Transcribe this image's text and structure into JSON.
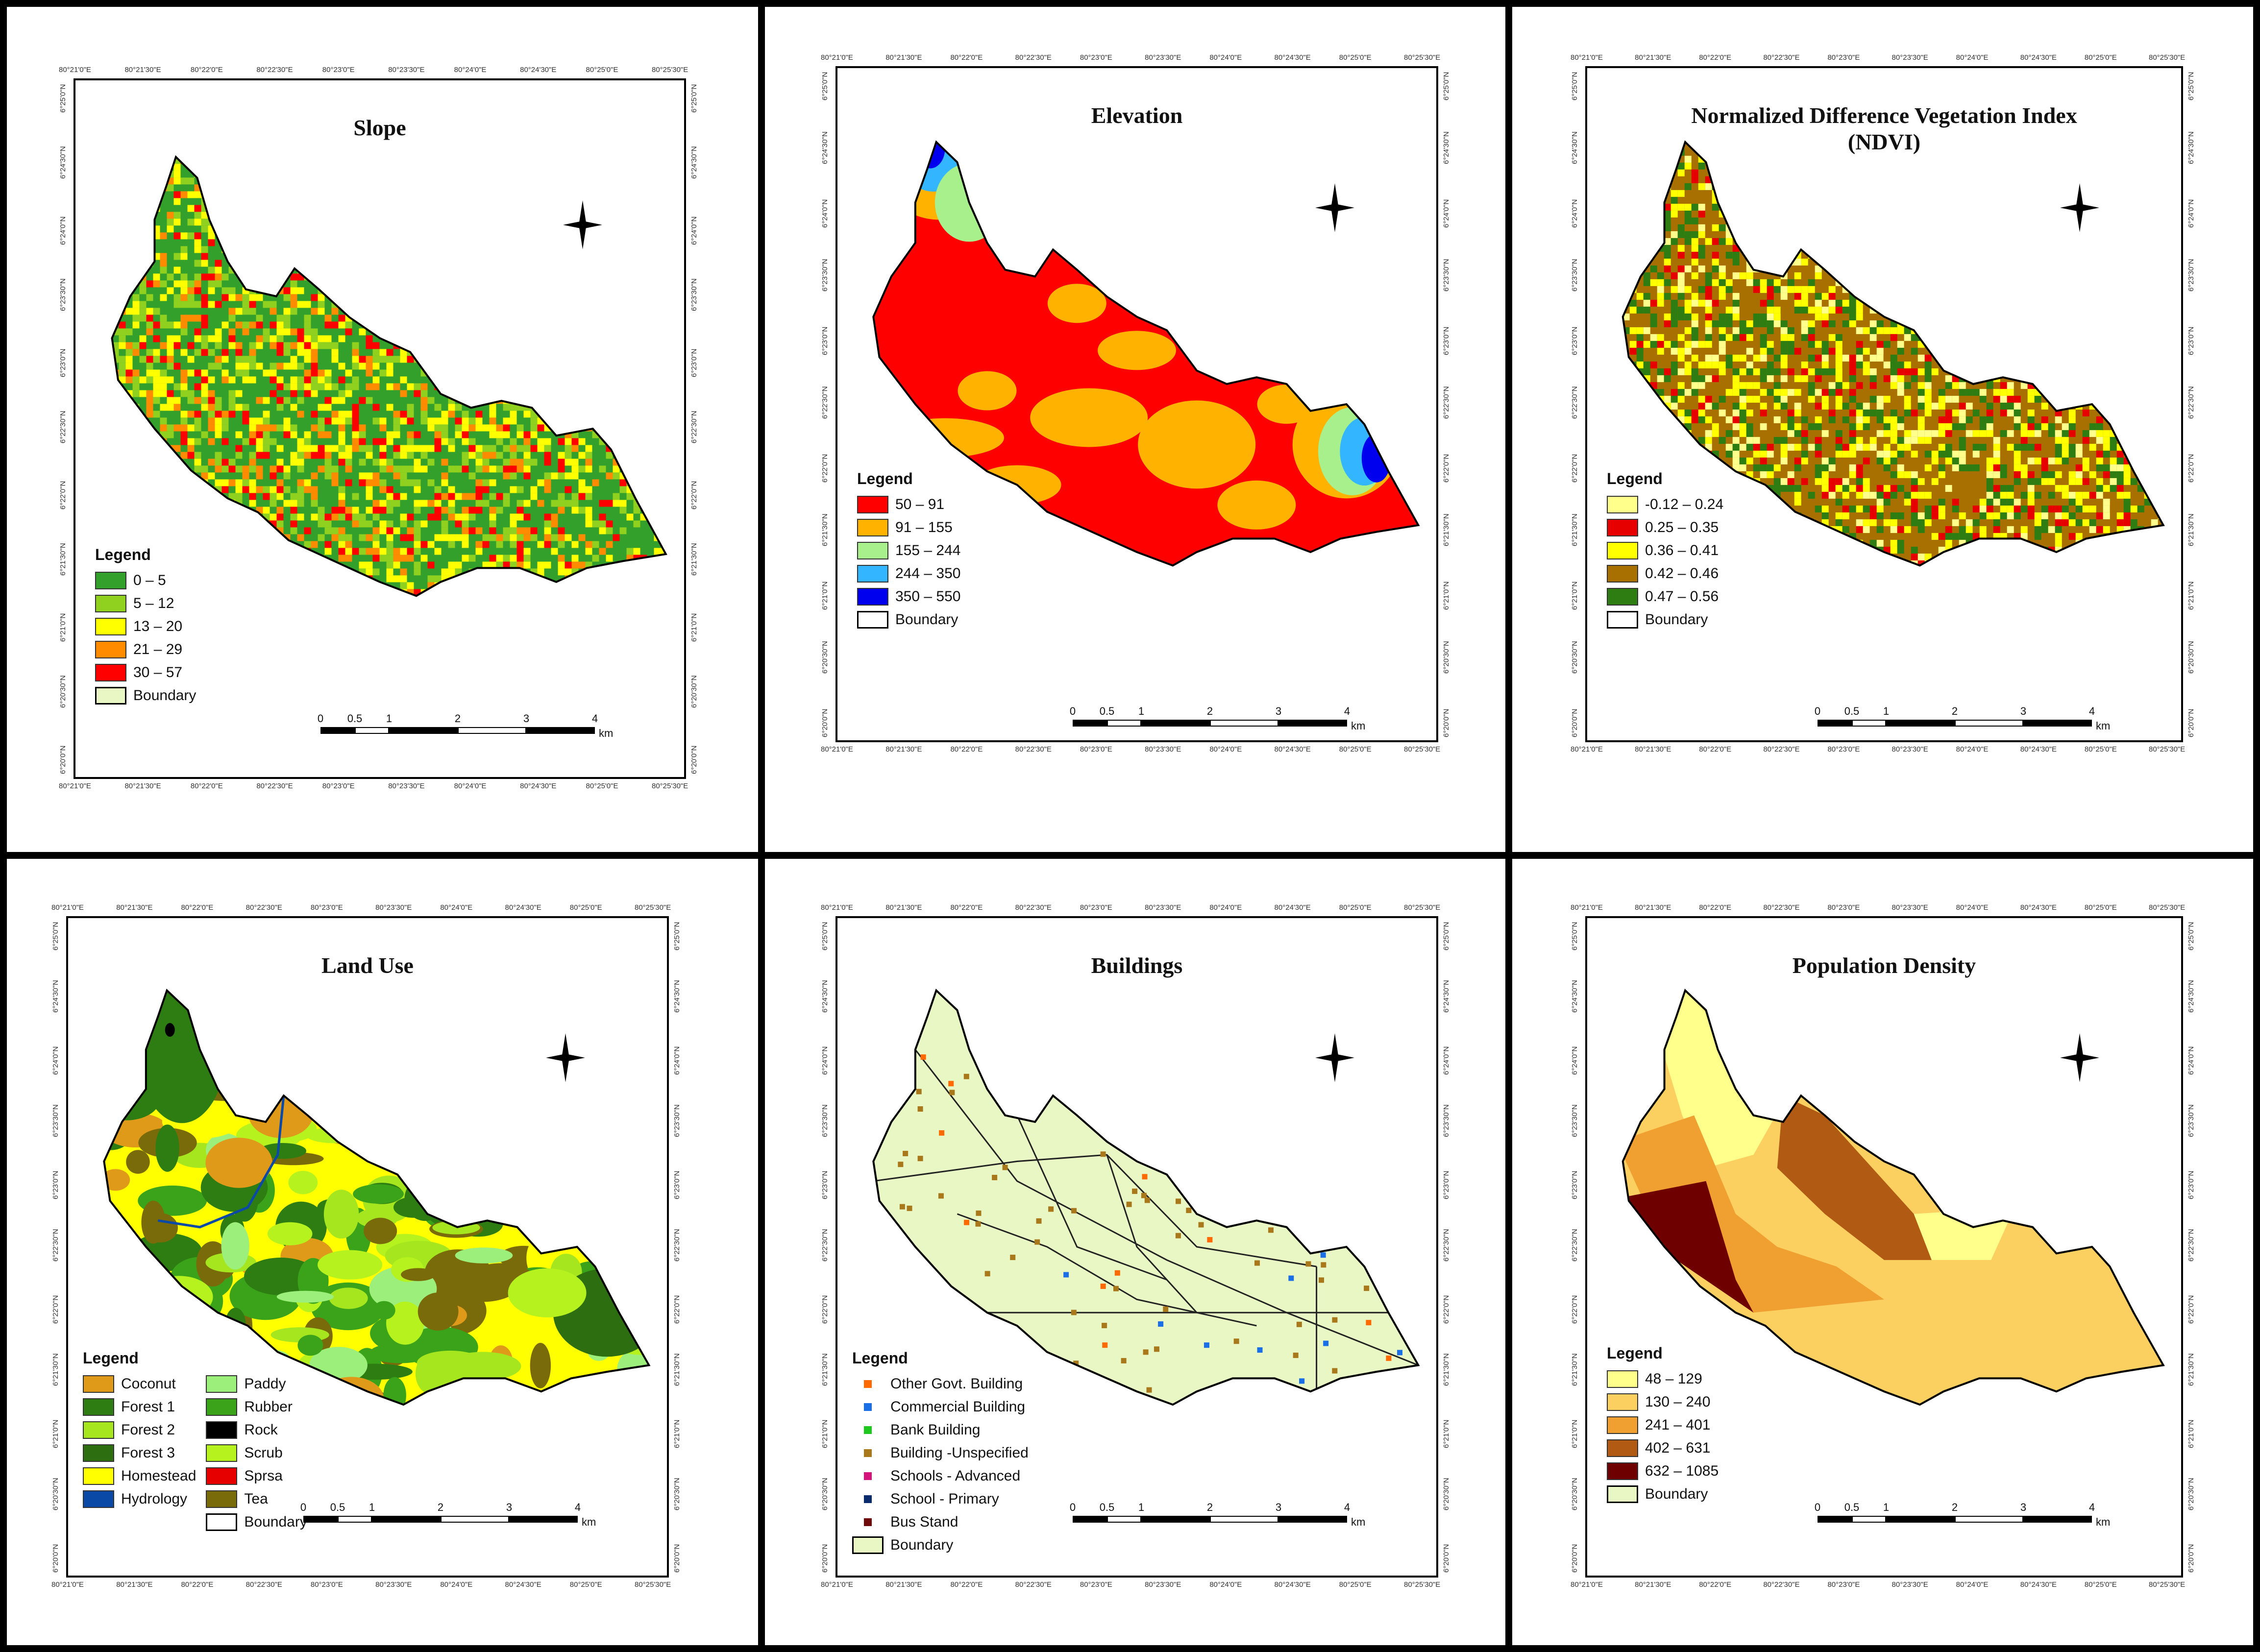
{
  "figure": {
    "panels": [
      {
        "id": "slope",
        "title": "Slope",
        "legend_title": "Legend",
        "legend": [
          {
            "label": "0 – 5",
            "color": "#33a02c"
          },
          {
            "label": "5 – 12",
            "color": "#8fd11e"
          },
          {
            "label": "13 – 20",
            "color": "#ffff00"
          },
          {
            "label": "21 – 29",
            "color": "#ff8c00"
          },
          {
            "label": "30 – 57",
            "color": "#ff0000"
          },
          {
            "label": "Boundary",
            "color": "#e8f7c4"
          }
        ],
        "scale_labels": [
          "0",
          "0.5",
          "1",
          "2",
          "3",
          "4"
        ],
        "scale_unit": "km",
        "top_ticks": [
          "80°21'0\"E",
          "80°21'30\"E",
          "80°22'0\"E",
          "80°22'30\"E",
          "80°23'0\"E",
          "80°23'30\"E",
          "80°24'0\"E",
          "80°24'30\"E",
          "80°25'0\"E",
          "80°25'30\"E"
        ],
        "side_ticks": [
          "6°25'0\"N",
          "6°24'30\"N",
          "6°24'0\"N",
          "6°23'30\"N",
          "6°23'0\"N",
          "6°22'30\"N",
          "6°22'0\"N",
          "6°21'30\"N",
          "6°21'0\"N",
          "6°20'30\"N",
          "6°20'0\"N"
        ]
      },
      {
        "id": "elevation",
        "title": "Elevation",
        "legend_title": "Legend",
        "legend": [
          {
            "label": "50 – 91",
            "color": "#ff0000"
          },
          {
            "label": "91 – 155",
            "color": "#ffb300"
          },
          {
            "label": "155 – 244",
            "color": "#a8f08c"
          },
          {
            "label": "244 – 350",
            "color": "#33b5ff"
          },
          {
            "label": "350 – 550",
            "color": "#0000ee"
          },
          {
            "label": "Boundary",
            "color": "#ffffff"
          }
        ],
        "scale_labels": [
          "0",
          "0.5",
          "1",
          "2",
          "3",
          "4"
        ],
        "scale_unit": "km",
        "top_ticks": [
          "80°21'0\"E",
          "80°21'30\"E",
          "80°22'0\"E",
          "80°22'30\"E",
          "80°23'0\"E",
          "80°23'30\"E",
          "80°24'0\"E",
          "80°24'30\"E",
          "80°25'0\"E",
          "80°25'30\"E"
        ],
        "side_ticks": [
          "6°25'0\"N",
          "6°24'30\"N",
          "6°24'0\"N",
          "6°23'30\"N",
          "6°23'0\"N",
          "6°22'30\"N",
          "6°22'0\"N",
          "6°21'30\"N",
          "6°21'0\"N",
          "6°20'30\"N",
          "6°20'0\"N"
        ]
      },
      {
        "id": "ndvi",
        "title": "Normalized Difference Vegetation Index",
        "subtitle": "(NDVI)",
        "legend_title": "Legend",
        "legend": [
          {
            "label": "-0.12 – 0.24",
            "color": "#ffff8c"
          },
          {
            "label": "0.25 – 0.35",
            "color": "#e60000"
          },
          {
            "label": "0.36 – 0.41",
            "color": "#ffff00"
          },
          {
            "label": "0.42 – 0.46",
            "color": "#a87000"
          },
          {
            "label": "0.47 – 0.56",
            "color": "#2e7d12"
          },
          {
            "label": "Boundary",
            "color": "#ffffff"
          }
        ],
        "scale_labels": [
          "0",
          "0.5",
          "1",
          "2",
          "3",
          "4"
        ],
        "scale_unit": "km",
        "top_ticks": [
          "80°21'0\"E",
          "80°21'30\"E",
          "80°22'0\"E",
          "80°22'30\"E",
          "80°23'0\"E",
          "80°23'30\"E",
          "80°24'0\"E",
          "80°24'30\"E",
          "80°25'0\"E",
          "80°25'30\"E"
        ],
        "side_ticks": [
          "6°25'0\"N",
          "6°24'30\"N",
          "6°24'0\"N",
          "6°23'30\"N",
          "6°23'0\"N",
          "6°22'30\"N",
          "6°22'0\"N",
          "6°21'30\"N",
          "6°21'0\"N",
          "6°20'30\"N",
          "6°20'0\"N"
        ]
      },
      {
        "id": "landuse",
        "title": "Land Use",
        "legend_title": "Legend",
        "legend_col1": [
          {
            "label": "Coconut",
            "color": "#e09a1a"
          },
          {
            "label": "Forest 1",
            "color": "#2e7d12"
          },
          {
            "label": "Forest 2",
            "color": "#a6e61e"
          },
          {
            "label": "Forest 3",
            "color": "#2d6e10"
          },
          {
            "label": "Homestead",
            "color": "#ffff00"
          },
          {
            "label": "Hydrology",
            "color": "#0a4aa6"
          }
        ],
        "legend_col2": [
          {
            "label": "Paddy",
            "color": "#9bef7a"
          },
          {
            "label": "Rubber",
            "color": "#3aa31a"
          },
          {
            "label": "Rock",
            "color": "#000000"
          },
          {
            "label": "Scrub",
            "color": "#b5f21e"
          },
          {
            "label": "Sprsa",
            "color": "#e60000"
          },
          {
            "label": "Tea",
            "color": "#7a6b0a"
          },
          {
            "label": "Boundary",
            "color": "#ffffff"
          }
        ],
        "scale_labels": [
          "0",
          "0.5",
          "1",
          "2",
          "3",
          "4"
        ],
        "scale_unit": "km",
        "top_ticks": [
          "80°21'0\"E",
          "80°21'30\"E",
          "80°22'0\"E",
          "80°22'30\"E",
          "80°23'0\"E",
          "80°23'30\"E",
          "80°24'0\"E",
          "80°24'30\"E",
          "80°25'0\"E",
          "80°25'30\"E"
        ],
        "side_ticks": [
          "6°25'0\"N",
          "6°24'30\"N",
          "6°24'0\"N",
          "6°23'30\"N",
          "6°23'0\"N",
          "6°22'30\"N",
          "6°22'0\"N",
          "6°21'30\"N",
          "6°21'0\"N",
          "6°20'30\"N",
          "6°20'0\"N"
        ]
      },
      {
        "id": "buildings",
        "title": "Buildings",
        "legend_title": "Legend",
        "legend": [
          {
            "label": "Other Govt. Building",
            "color": "#ff6a00"
          },
          {
            "label": "Commercial Building",
            "color": "#1a6ee6"
          },
          {
            "label": "Bank Building",
            "color": "#1ec81e"
          },
          {
            "label": "Building -Unspecified",
            "color": "#a8781a"
          },
          {
            "label": "Schools - Advanced",
            "color": "#d4147a"
          },
          {
            "label": "School - Primary",
            "color": "#0a2a6e"
          },
          {
            "label": "Bus Stand",
            "color": "#6e0a0a"
          },
          {
            "label": "Boundary",
            "color": "#e8f7c4"
          }
        ],
        "scale_labels": [
          "0",
          "0.5",
          "1",
          "2",
          "3",
          "4"
        ],
        "scale_unit": "km",
        "top_ticks": [
          "80°21'0\"E",
          "80°21'30\"E",
          "80°22'0\"E",
          "80°22'30\"E",
          "80°23'0\"E",
          "80°23'30\"E",
          "80°24'0\"E",
          "80°24'30\"E",
          "80°25'0\"E",
          "80°25'30\"E"
        ],
        "side_ticks": [
          "6°25'0\"N",
          "6°24'30\"N",
          "6°24'0\"N",
          "6°23'30\"N",
          "6°23'0\"N",
          "6°22'30\"N",
          "6°22'0\"N",
          "6°21'30\"N",
          "6°21'0\"N",
          "6°20'30\"N",
          "6°20'0\"N"
        ]
      },
      {
        "id": "population",
        "title": "Population Density",
        "legend_title": "Legend",
        "legend": [
          {
            "label": "48 – 129",
            "color": "#ffff8c"
          },
          {
            "label": "130 – 240",
            "color": "#fcd060"
          },
          {
            "label": "241 – 401",
            "color": "#f0a030"
          },
          {
            "label": "402 – 631",
            "color": "#b05a14"
          },
          {
            "label": "632 – 1085",
            "color": "#6e0000"
          },
          {
            "label": "Boundary",
            "color": "#e8f7c4"
          }
        ],
        "scale_labels": [
          "0",
          "0.5",
          "1",
          "2",
          "3",
          "4"
        ],
        "scale_unit": "km",
        "top_ticks": [
          "80°21'0\"E",
          "80°21'30\"E",
          "80°22'0\"E",
          "80°22'30\"E",
          "80°23'0\"E",
          "80°23'30\"E",
          "80°24'0\"E",
          "80°24'30\"E",
          "80°25'0\"E",
          "80°25'30\"E"
        ],
        "side_ticks": [
          "6°25'0\"N",
          "6°24'30\"N",
          "6°24'0\"N",
          "6°23'30\"N",
          "6°23'0\"N",
          "6°22'30\"N",
          "6°22'0\"N",
          "6°21'30\"N",
          "6°21'0\"N",
          "6°20'30\"N",
          "6°20'0\"N"
        ]
      }
    ]
  }
}
